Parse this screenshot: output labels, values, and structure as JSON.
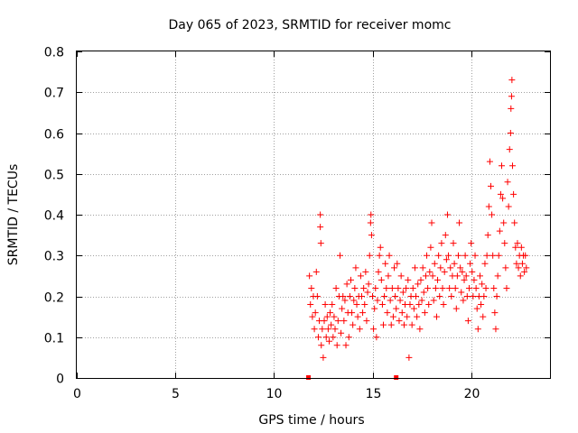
{
  "chart_data": {
    "type": "scatter",
    "title": "Day 065 of 2023, SRMTID for receiver momc",
    "xlabel": "GPS time / hours",
    "ylabel": "SRMTID / TECUs",
    "xlim": [
      0,
      24
    ],
    "ylim": [
      0,
      0.8
    ],
    "xticks": [
      "0",
      "5",
      "10",
      "15",
      "20"
    ],
    "yticks": [
      "0",
      "0.1",
      "0.2",
      "0.3",
      "0.4",
      "0.5",
      "0.6",
      "0.7",
      "0.8"
    ],
    "grid": true,
    "marker": "+",
    "color": "#ff0000",
    "series": [
      {
        "name": "SRMTID",
        "points": [
          [
            11.8,
            0.25
          ],
          [
            11.85,
            0.18
          ],
          [
            11.9,
            0.22
          ],
          [
            11.95,
            0.15
          ],
          [
            12.0,
            0.2
          ],
          [
            12.05,
            0.12
          ],
          [
            12.1,
            0.16
          ],
          [
            12.15,
            0.26
          ],
          [
            12.2,
            0.2
          ],
          [
            12.25,
            0.1
          ],
          [
            12.3,
            0.14
          ],
          [
            12.35,
            0.4
          ],
          [
            12.35,
            0.37
          ],
          [
            12.38,
            0.33
          ],
          [
            12.4,
            0.08
          ],
          [
            12.45,
            0.12
          ],
          [
            12.5,
            0.05
          ],
          [
            12.55,
            0.14
          ],
          [
            12.6,
            0.18
          ],
          [
            12.65,
            0.1
          ],
          [
            12.7,
            0.15
          ],
          [
            12.75,
            0.12
          ],
          [
            12.8,
            0.09
          ],
          [
            12.85,
            0.16
          ],
          [
            12.9,
            0.13
          ],
          [
            12.95,
            0.18
          ],
          [
            13.0,
            0.1
          ],
          [
            13.05,
            0.15
          ],
          [
            13.1,
            0.12
          ],
          [
            13.15,
            0.22
          ],
          [
            13.2,
            0.08
          ],
          [
            13.25,
            0.14
          ],
          [
            13.3,
            0.2
          ],
          [
            13.35,
            0.3
          ],
          [
            13.4,
            0.11
          ],
          [
            13.45,
            0.17
          ],
          [
            13.5,
            0.2
          ],
          [
            13.55,
            0.14
          ],
          [
            13.6,
            0.19
          ],
          [
            13.65,
            0.08
          ],
          [
            13.7,
            0.23
          ],
          [
            13.75,
            0.16
          ],
          [
            13.8,
            0.1
          ],
          [
            13.85,
            0.2
          ],
          [
            13.9,
            0.24
          ],
          [
            13.95,
            0.16
          ],
          [
            14.0,
            0.13
          ],
          [
            14.05,
            0.19
          ],
          [
            14.1,
            0.22
          ],
          [
            14.15,
            0.27
          ],
          [
            14.2,
            0.18
          ],
          [
            14.25,
            0.15
          ],
          [
            14.3,
            0.2
          ],
          [
            14.35,
            0.12
          ],
          [
            14.4,
            0.25
          ],
          [
            14.45,
            0.2
          ],
          [
            14.5,
            0.16
          ],
          [
            14.55,
            0.22
          ],
          [
            14.6,
            0.18
          ],
          [
            14.65,
            0.26
          ],
          [
            14.7,
            0.14
          ],
          [
            14.75,
            0.21
          ],
          [
            14.8,
            0.23
          ],
          [
            14.85,
            0.3
          ],
          [
            14.9,
            0.38
          ],
          [
            14.92,
            0.4
          ],
          [
            14.95,
            0.35
          ],
          [
            15.0,
            0.2
          ],
          [
            15.05,
            0.12
          ],
          [
            15.1,
            0.17
          ],
          [
            15.15,
            0.22
          ],
          [
            15.2,
            0.1
          ],
          [
            15.25,
            0.19
          ],
          [
            15.3,
            0.26
          ],
          [
            15.35,
            0.3
          ],
          [
            15.4,
            0.32
          ],
          [
            15.45,
            0.24
          ],
          [
            15.5,
            0.18
          ],
          [
            15.55,
            0.13
          ],
          [
            15.6,
            0.2
          ],
          [
            15.65,
            0.28
          ],
          [
            15.7,
            0.22
          ],
          [
            15.75,
            0.16
          ],
          [
            15.8,
            0.25
          ],
          [
            15.85,
            0.3
          ],
          [
            15.9,
            0.19
          ],
          [
            15.95,
            0.13
          ],
          [
            16.0,
            0.22
          ],
          [
            16.05,
            0.15
          ],
          [
            16.1,
            0.27
          ],
          [
            16.15,
            0.2
          ],
          [
            16.2,
            0.17
          ],
          [
            16.25,
            0.28
          ],
          [
            16.3,
            0.22
          ],
          [
            16.35,
            0.14
          ],
          [
            16.4,
            0.19
          ],
          [
            16.45,
            0.25
          ],
          [
            16.5,
            0.16
          ],
          [
            16.55,
            0.21
          ],
          [
            16.6,
            0.13
          ],
          [
            16.65,
            0.18
          ],
          [
            16.7,
            0.22
          ],
          [
            16.75,
            0.15
          ],
          [
            16.8,
            0.24
          ],
          [
            16.85,
            0.05
          ],
          [
            16.9,
            0.18
          ],
          [
            16.95,
            0.2
          ],
          [
            17.0,
            0.13
          ],
          [
            17.05,
            0.22
          ],
          [
            17.1,
            0.17
          ],
          [
            17.15,
            0.27
          ],
          [
            17.2,
            0.2
          ],
          [
            17.25,
            0.15
          ],
          [
            17.3,
            0.23
          ],
          [
            17.35,
            0.18
          ],
          [
            17.4,
            0.12
          ],
          [
            17.45,
            0.24
          ],
          [
            17.5,
            0.19
          ],
          [
            17.55,
            0.27
          ],
          [
            17.6,
            0.21
          ],
          [
            17.65,
            0.16
          ],
          [
            17.7,
            0.25
          ],
          [
            17.75,
            0.3
          ],
          [
            17.8,
            0.22
          ],
          [
            17.85,
            0.18
          ],
          [
            17.9,
            0.26
          ],
          [
            17.95,
            0.32
          ],
          [
            18.0,
            0.38
          ],
          [
            18.05,
            0.25
          ],
          [
            18.1,
            0.19
          ],
          [
            18.15,
            0.28
          ],
          [
            18.2,
            0.22
          ],
          [
            18.25,
            0.15
          ],
          [
            18.3,
            0.24
          ],
          [
            18.35,
            0.3
          ],
          [
            18.4,
            0.2
          ],
          [
            18.45,
            0.27
          ],
          [
            18.5,
            0.33
          ],
          [
            18.55,
            0.22
          ],
          [
            18.6,
            0.18
          ],
          [
            18.65,
            0.26
          ],
          [
            18.7,
            0.35
          ],
          [
            18.75,
            0.29
          ],
          [
            18.8,
            0.4
          ],
          [
            18.85,
            0.3
          ],
          [
            18.9,
            0.22
          ],
          [
            18.95,
            0.27
          ],
          [
            19.0,
            0.2
          ],
          [
            19.05,
            0.25
          ],
          [
            19.1,
            0.33
          ],
          [
            19.15,
            0.28
          ],
          [
            19.2,
            0.22
          ],
          [
            19.25,
            0.17
          ],
          [
            19.3,
            0.25
          ],
          [
            19.35,
            0.3
          ],
          [
            19.4,
            0.38
          ],
          [
            19.45,
            0.27
          ],
          [
            19.5,
            0.21
          ],
          [
            19.55,
            0.26
          ],
          [
            19.6,
            0.19
          ],
          [
            19.65,
            0.24
          ],
          [
            19.7,
            0.3
          ],
          [
            19.75,
            0.25
          ],
          [
            19.8,
            0.2
          ],
          [
            19.85,
            0.14
          ],
          [
            19.9,
            0.22
          ],
          [
            19.95,
            0.28
          ],
          [
            20.0,
            0.33
          ],
          [
            20.05,
            0.26
          ],
          [
            20.1,
            0.2
          ],
          [
            20.15,
            0.24
          ],
          [
            20.2,
            0.3
          ],
          [
            20.25,
            0.22
          ],
          [
            20.3,
            0.17
          ],
          [
            20.35,
            0.12
          ],
          [
            20.4,
            0.2
          ],
          [
            20.45,
            0.25
          ],
          [
            20.5,
            0.18
          ],
          [
            20.55,
            0.23
          ],
          [
            20.6,
            0.15
          ],
          [
            20.65,
            0.2
          ],
          [
            20.7,
            0.28
          ],
          [
            20.75,
            0.22
          ],
          [
            20.8,
            0.3
          ],
          [
            20.85,
            0.35
          ],
          [
            20.9,
            0.42
          ],
          [
            20.95,
            0.53
          ],
          [
            21.0,
            0.47
          ],
          [
            21.05,
            0.4
          ],
          [
            21.1,
            0.3
          ],
          [
            21.15,
            0.22
          ],
          [
            21.2,
            0.16
          ],
          [
            21.25,
            0.12
          ],
          [
            21.3,
            0.2
          ],
          [
            21.35,
            0.25
          ],
          [
            21.4,
            0.3
          ],
          [
            21.45,
            0.36
          ],
          [
            21.5,
            0.45
          ],
          [
            21.55,
            0.52
          ],
          [
            21.6,
            0.44
          ],
          [
            21.65,
            0.38
          ],
          [
            21.7,
            0.33
          ],
          [
            21.75,
            0.27
          ],
          [
            21.8,
            0.22
          ],
          [
            21.85,
            0.48
          ],
          [
            21.9,
            0.42
          ],
          [
            21.95,
            0.56
          ],
          [
            22.0,
            0.6
          ],
          [
            22.02,
            0.66
          ],
          [
            22.05,
            0.69
          ],
          [
            22.07,
            0.73
          ],
          [
            22.1,
            0.52
          ],
          [
            22.15,
            0.45
          ],
          [
            22.2,
            0.38
          ],
          [
            22.25,
            0.32
          ],
          [
            22.3,
            0.28
          ],
          [
            22.35,
            0.33
          ],
          [
            22.4,
            0.27
          ],
          [
            22.45,
            0.3
          ],
          [
            22.5,
            0.25
          ],
          [
            22.55,
            0.32
          ],
          [
            22.6,
            0.28
          ],
          [
            22.65,
            0.3
          ],
          [
            22.7,
            0.26
          ],
          [
            22.75,
            0.3
          ],
          [
            22.8,
            0.27
          ]
        ]
      }
    ],
    "gap_markers": [
      11.75,
      16.2
    ]
  }
}
